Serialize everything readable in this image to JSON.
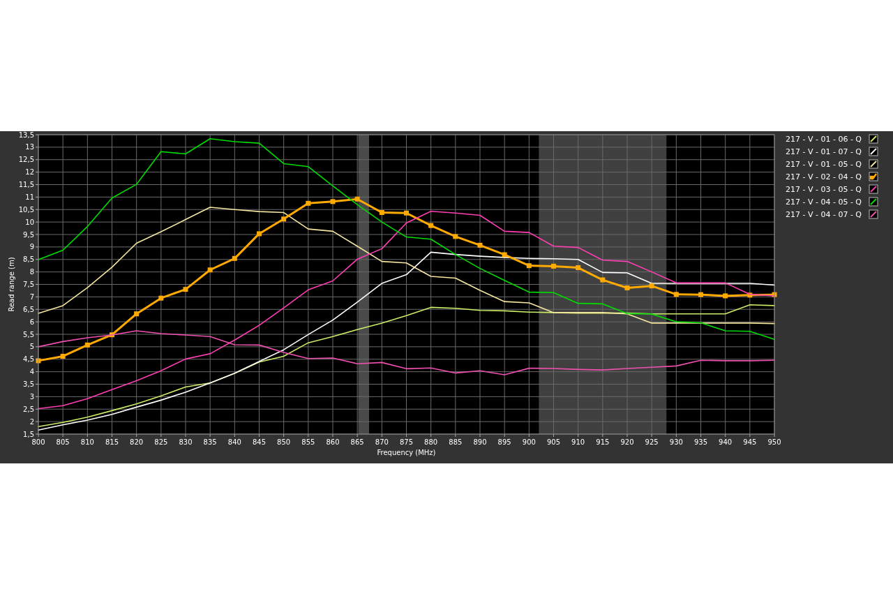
{
  "chart_data": {
    "type": "line",
    "xlabel": "Frequency (MHz)",
    "ylabel": "Read range (m)",
    "x": [
      800,
      805,
      810,
      815,
      820,
      825,
      830,
      835,
      840,
      845,
      850,
      855,
      860,
      865,
      870,
      875,
      880,
      885,
      890,
      895,
      900,
      905,
      910,
      915,
      920,
      925,
      930,
      935,
      940,
      945,
      950
    ],
    "xlim": [
      800,
      950
    ],
    "xticks": [
      800,
      805,
      810,
      815,
      820,
      825,
      830,
      835,
      840,
      845,
      850,
      855,
      860,
      865,
      870,
      875,
      880,
      885,
      890,
      895,
      900,
      905,
      910,
      915,
      920,
      925,
      930,
      935,
      940,
      945,
      950
    ],
    "ylim": [
      1.5,
      13.5
    ],
    "yticks": [
      {
        "value": 1.5,
        "label": "1,5"
      },
      2,
      {
        "value": 2.5,
        "label": "2,5"
      },
      3,
      {
        "value": 3.5,
        "label": "3,5"
      },
      4,
      {
        "value": 4.5,
        "label": "4,5"
      },
      5,
      {
        "value": 5.5,
        "label": "5,5"
      },
      6,
      {
        "value": 6.5,
        "label": "6,5"
      },
      7,
      {
        "value": 7.5,
        "label": "7,5"
      },
      8,
      {
        "value": 8.5,
        "label": "8,5"
      },
      9,
      {
        "value": 9.5,
        "label": "9,5"
      },
      10,
      {
        "value": 10.5,
        "label": "10,5"
      },
      11,
      {
        "value": 11.5,
        "label": "11,5"
      },
      12,
      {
        "value": 12.5,
        "label": "12,5"
      },
      13,
      {
        "value": 13.5,
        "label": "13,5"
      }
    ],
    "grid": true,
    "legend": "right",
    "line_style": "solid",
    "bands": [
      {
        "axis": "x",
        "from": 865.2,
        "to": 867.4,
        "color": "#4a4a4a"
      },
      {
        "axis": "x",
        "from": 902,
        "to": 928,
        "color": "#404040"
      }
    ],
    "series": [
      {
        "name": "217 - V - 01 - 06 - Q",
        "color": "#ccee66",
        "marker": "none",
        "values": [
          1.8,
          1.97,
          2.18,
          2.44,
          2.71,
          3.03,
          3.39,
          3.55,
          3.93,
          4.39,
          4.62,
          5.16,
          5.41,
          5.69,
          5.95,
          6.25,
          6.58,
          6.54,
          6.46,
          6.44,
          6.39,
          6.37,
          6.35,
          6.35,
          6.35,
          6.32,
          6.32,
          6.32,
          6.32,
          6.68,
          6.65
        ]
      },
      {
        "name": "217 - V - 01 - 07 - Q",
        "color": "#ffffff",
        "marker": "none",
        "values": [
          1.66,
          1.87,
          2.06,
          2.29,
          2.58,
          2.86,
          3.18,
          3.55,
          3.94,
          4.41,
          4.88,
          5.49,
          6.07,
          6.79,
          7.54,
          7.89,
          8.79,
          8.7,
          8.63,
          8.58,
          8.54,
          8.53,
          8.5,
          7.98,
          7.96,
          7.54,
          7.54,
          7.54,
          7.54,
          7.54,
          7.47
        ]
      },
      {
        "name": "217 - V - 01 - 05 - Q",
        "color": "#f5e6a0",
        "marker": "none",
        "values": [
          6.34,
          6.65,
          7.37,
          8.19,
          9.15,
          9.61,
          10.1,
          10.59,
          10.5,
          10.42,
          10.38,
          9.72,
          9.63,
          9.03,
          8.42,
          8.36,
          7.82,
          7.75,
          7.26,
          6.81,
          6.76,
          6.37,
          6.37,
          6.37,
          6.32,
          5.95,
          5.95,
          5.95,
          5.95,
          5.95,
          5.93
        ]
      },
      {
        "name": "217 - V - 02 - 04 - Q",
        "color": "#ffaa00",
        "marker": "square",
        "values": [
          4.44,
          4.62,
          5.07,
          5.48,
          6.32,
          6.95,
          7.3,
          8.08,
          8.54,
          9.53,
          10.12,
          10.75,
          10.82,
          10.92,
          10.38,
          10.36,
          9.86,
          9.42,
          9.07,
          8.69,
          8.25,
          8.23,
          8.17,
          7.68,
          7.36,
          7.44,
          7.1,
          7.09,
          7.04,
          7.07,
          7.09
        ]
      },
      {
        "name": "217 - V - 03 - 05 - Q",
        "color": "#ff3fb4",
        "marker": "none",
        "values": [
          2.52,
          2.64,
          2.92,
          3.28,
          3.64,
          4.04,
          4.51,
          4.72,
          5.27,
          5.86,
          6.56,
          7.28,
          7.64,
          8.51,
          8.93,
          9.96,
          10.43,
          10.36,
          10.27,
          9.63,
          9.58,
          9.03,
          8.98,
          8.47,
          8.42,
          8.0,
          7.56,
          7.56,
          7.56,
          7.1,
          7.04
        ]
      },
      {
        "name": "217 - V - 04 - 05 - Q",
        "color": "#00dd00",
        "marker": "none",
        "values": [
          8.49,
          8.87,
          9.82,
          10.96,
          11.51,
          12.82,
          12.73,
          13.34,
          13.22,
          13.16,
          12.34,
          12.22,
          11.45,
          10.7,
          10.0,
          9.4,
          9.31,
          8.7,
          8.14,
          7.66,
          7.19,
          7.17,
          6.74,
          6.72,
          6.33,
          6.31,
          6.0,
          5.96,
          5.64,
          5.62,
          5.3
        ]
      },
      {
        "name": "217 - V - 04 - 07 - Q",
        "color": "#f050b0",
        "marker": "none",
        "values": [
          5.0,
          5.21,
          5.36,
          5.47,
          5.64,
          5.53,
          5.47,
          5.41,
          5.08,
          5.07,
          4.77,
          4.53,
          4.55,
          4.32,
          4.37,
          4.12,
          4.15,
          3.95,
          4.04,
          3.88,
          4.14,
          4.13,
          4.09,
          4.07,
          4.13,
          4.18,
          4.23,
          4.46,
          4.44,
          4.44,
          4.46
        ]
      }
    ]
  }
}
